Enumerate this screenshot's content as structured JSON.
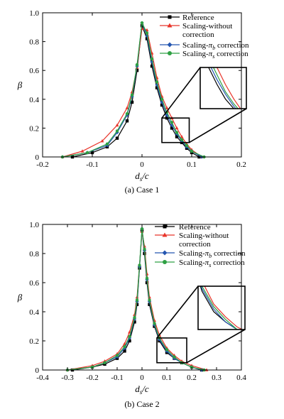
{
  "colors": {
    "reference": "#000000",
    "no_corr": "#e8342a",
    "pib": "#2456b0",
    "pis": "#2ea043"
  },
  "legend": {
    "reference": "Reference",
    "no_corr_1": "Scaling-without",
    "no_corr_2": "correction",
    "pib_prefix": "Scaling-",
    "pib_sym": "π",
    "pib_sub": "b",
    "pib_suffix": " correction",
    "pis_prefix": "Scaling-",
    "pis_sym": "π",
    "pis_sub": "s",
    "pis_suffix": " correction"
  },
  "chart_data": [
    {
      "type": "line",
      "caption": "(a) Case 1",
      "ylabel": "β",
      "xlabel_main": "d",
      "xlabel_sub": "s",
      "xlabel_tail": "/c",
      "xlim": [
        -0.2,
        0.2
      ],
      "ylim": [
        0,
        1.0
      ],
      "xticks": [
        "-0.2",
        "-0.1",
        "0",
        "0.1",
        "0.2"
      ],
      "yticks": [
        "0",
        "0.2",
        "0.4",
        "0.6",
        "0.8",
        "1.0"
      ],
      "inset_region": {
        "x": [
          0.04,
          0.095
        ],
        "y": [
          0.1,
          0.27
        ]
      },
      "series": [
        {
          "name": "Reference",
          "key": "reference",
          "marker": "square",
          "x": [
            -0.14,
            -0.1,
            -0.07,
            -0.05,
            -0.03,
            -0.02,
            -0.01,
            0.0,
            0.01,
            0.02,
            0.03,
            0.04,
            0.05,
            0.06,
            0.07,
            0.08,
            0.09,
            0.1,
            0.115
          ],
          "y": [
            0.0,
            0.03,
            0.07,
            0.13,
            0.25,
            0.38,
            0.6,
            0.91,
            0.82,
            0.63,
            0.48,
            0.36,
            0.27,
            0.2,
            0.14,
            0.1,
            0.06,
            0.03,
            0.0
          ]
        },
        {
          "name": "Scaling-without correction",
          "key": "no_corr",
          "marker": "triangle",
          "x": [
            -0.16,
            -0.12,
            -0.08,
            -0.05,
            -0.03,
            -0.02,
            -0.01,
            0.0,
            0.01,
            0.02,
            0.03,
            0.04,
            0.05,
            0.06,
            0.07,
            0.08,
            0.09,
            0.1,
            0.12
          ],
          "y": [
            0.0,
            0.04,
            0.11,
            0.22,
            0.34,
            0.45,
            0.62,
            0.89,
            0.88,
            0.72,
            0.55,
            0.42,
            0.34,
            0.27,
            0.2,
            0.14,
            0.09,
            0.05,
            0.0
          ]
        },
        {
          "name": "Scaling-πb correction",
          "key": "pib",
          "marker": "diamond",
          "x": [
            -0.16,
            -0.11,
            -0.07,
            -0.05,
            -0.03,
            -0.02,
            -0.01,
            0.0,
            0.01,
            0.02,
            0.03,
            0.04,
            0.05,
            0.06,
            0.07,
            0.08,
            0.09,
            0.1,
            0.12
          ],
          "y": [
            0.0,
            0.03,
            0.08,
            0.17,
            0.29,
            0.42,
            0.63,
            0.93,
            0.84,
            0.66,
            0.5,
            0.38,
            0.29,
            0.22,
            0.16,
            0.11,
            0.07,
            0.04,
            0.0
          ]
        },
        {
          "name": "Scaling-πs correction",
          "key": "pis",
          "marker": "circle",
          "x": [
            -0.16,
            -0.11,
            -0.07,
            -0.05,
            -0.03,
            -0.02,
            -0.01,
            0.0,
            0.01,
            0.02,
            0.03,
            0.04,
            0.05,
            0.06,
            0.07,
            0.08,
            0.09,
            0.1,
            0.125
          ],
          "y": [
            0.0,
            0.03,
            0.09,
            0.18,
            0.3,
            0.43,
            0.64,
            0.93,
            0.86,
            0.68,
            0.52,
            0.4,
            0.31,
            0.24,
            0.17,
            0.12,
            0.08,
            0.04,
            0.0
          ]
        }
      ]
    },
    {
      "type": "line",
      "caption": "(b) Case 2",
      "ylabel": "β",
      "xlabel_main": "d",
      "xlabel_sub": "s",
      "xlabel_tail": "/c",
      "xlim": [
        -0.4,
        0.4
      ],
      "ylim": [
        0,
        1.0
      ],
      "xticks": [
        "-0.4",
        "-0.3",
        "-0.2",
        "-0.1",
        "0",
        "0.1",
        "0.2",
        "0.3",
        "0.4"
      ],
      "yticks": [
        "0",
        "0.2",
        "0.4",
        "0.6",
        "0.8",
        "1.0"
      ],
      "inset_region": {
        "x": [
          0.06,
          0.18
        ],
        "y": [
          0.05,
          0.22
        ]
      },
      "series": [
        {
          "name": "Reference",
          "key": "reference",
          "marker": "square",
          "x": [
            -0.28,
            -0.2,
            -0.15,
            -0.1,
            -0.07,
            -0.05,
            -0.03,
            -0.02,
            -0.01,
            0.0,
            0.01,
            0.02,
            0.03,
            0.05,
            0.07,
            0.1,
            0.13,
            0.16,
            0.2,
            0.24
          ],
          "y": [
            0.0,
            0.02,
            0.04,
            0.08,
            0.13,
            0.2,
            0.33,
            0.45,
            0.7,
            0.96,
            0.8,
            0.6,
            0.45,
            0.3,
            0.2,
            0.12,
            0.08,
            0.05,
            0.02,
            0.0
          ]
        },
        {
          "name": "Scaling-without correction",
          "key": "no_corr",
          "marker": "triangle",
          "x": [
            -0.3,
            -0.2,
            -0.15,
            -0.1,
            -0.07,
            -0.05,
            -0.03,
            -0.02,
            -0.01,
            0.0,
            0.01,
            0.02,
            0.03,
            0.05,
            0.07,
            0.1,
            0.13,
            0.16,
            0.2,
            0.26
          ],
          "y": [
            0.0,
            0.03,
            0.06,
            0.11,
            0.18,
            0.26,
            0.38,
            0.5,
            0.72,
            0.95,
            0.85,
            0.66,
            0.5,
            0.34,
            0.24,
            0.15,
            0.1,
            0.06,
            0.03,
            0.0
          ]
        },
        {
          "name": "Scaling-πb correction",
          "key": "pib",
          "marker": "diamond",
          "x": [
            -0.3,
            -0.2,
            -0.15,
            -0.1,
            -0.07,
            -0.05,
            -0.03,
            -0.02,
            -0.01,
            0.0,
            0.01,
            0.02,
            0.03,
            0.05,
            0.07,
            0.1,
            0.13,
            0.16,
            0.2,
            0.24
          ],
          "y": [
            0.0,
            0.02,
            0.05,
            0.09,
            0.15,
            0.22,
            0.35,
            0.47,
            0.71,
            0.97,
            0.82,
            0.62,
            0.47,
            0.31,
            0.21,
            0.13,
            0.08,
            0.05,
            0.02,
            0.0
          ]
        },
        {
          "name": "Scaling-πs correction",
          "key": "pis",
          "marker": "circle",
          "x": [
            -0.3,
            -0.2,
            -0.15,
            -0.1,
            -0.07,
            -0.05,
            -0.03,
            -0.02,
            -0.01,
            0.0,
            0.01,
            0.02,
            0.03,
            0.05,
            0.07,
            0.1,
            0.13,
            0.16,
            0.2,
            0.25
          ],
          "y": [
            0.0,
            0.02,
            0.05,
            0.1,
            0.16,
            0.23,
            0.36,
            0.48,
            0.72,
            0.97,
            0.83,
            0.63,
            0.48,
            0.32,
            0.22,
            0.14,
            0.09,
            0.05,
            0.02,
            0.0
          ]
        }
      ]
    }
  ]
}
